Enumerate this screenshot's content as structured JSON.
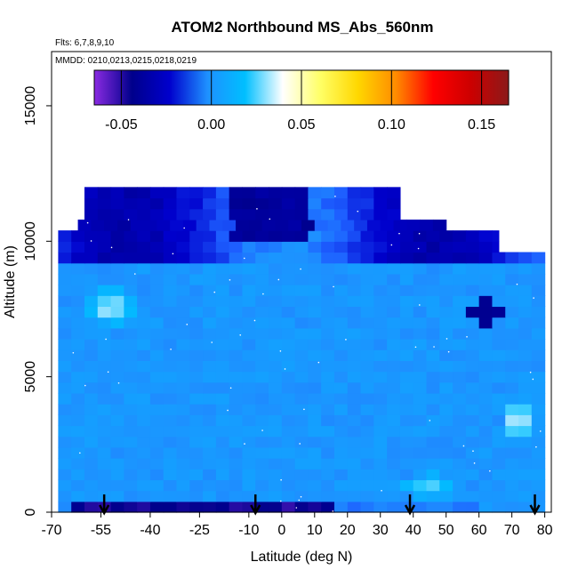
{
  "chart_data": {
    "type": "heatmap",
    "title": "ATOM2 Northbound MS_Abs_560nm",
    "subtitle_flights": "Flts: 6,7,8,9,10",
    "subtitle_dates": "MMDD: 0210,0213,0215,0218,0219",
    "xlabel": "Latitude (deg N)",
    "ylabel": "Altitude (m)",
    "xlim": [
      -70,
      82
    ],
    "ylim": [
      0,
      17000
    ],
    "x_ticks": [
      -70,
      -55,
      -40,
      -25,
      -10,
      0,
      10,
      20,
      30,
      40,
      50,
      60,
      70,
      80
    ],
    "x_tick_labels": [
      "-70",
      "-55",
      "-40",
      "-25",
      "-10",
      "0",
      "10",
      "20",
      "30",
      "40",
      "50",
      "60",
      "70",
      "80"
    ],
    "y_ticks": [
      0,
      5000,
      10000,
      15000
    ],
    "y_tick_labels": [
      "0",
      "5000",
      "10000",
      "15000"
    ],
    "colorbar": {
      "min": -0.065,
      "max": 0.165,
      "ticks": [
        -0.05,
        0.0,
        0.05,
        0.1,
        0.15
      ],
      "tick_labels": [
        "-0.05",
        "0.00",
        "0.05",
        "0.10",
        "0.15"
      ],
      "colors": [
        "#8a2be2",
        "#00008b",
        "#0000cd",
        "#1e90ff",
        "#00bfff",
        "#ffffff",
        "#ffff66",
        "#ffd700",
        "#ff8c00",
        "#ff0000",
        "#cc0000",
        "#8b1a1a"
      ]
    },
    "profile_markers_lat": [
      -54,
      -8,
      39,
      77
    ],
    "data_extent": {
      "lat_min": -68,
      "lat_max": 80,
      "alt_min": 0,
      "alt_max": 11900
    },
    "grid": false,
    "legend_position": "top (colorbar inside plot)"
  }
}
